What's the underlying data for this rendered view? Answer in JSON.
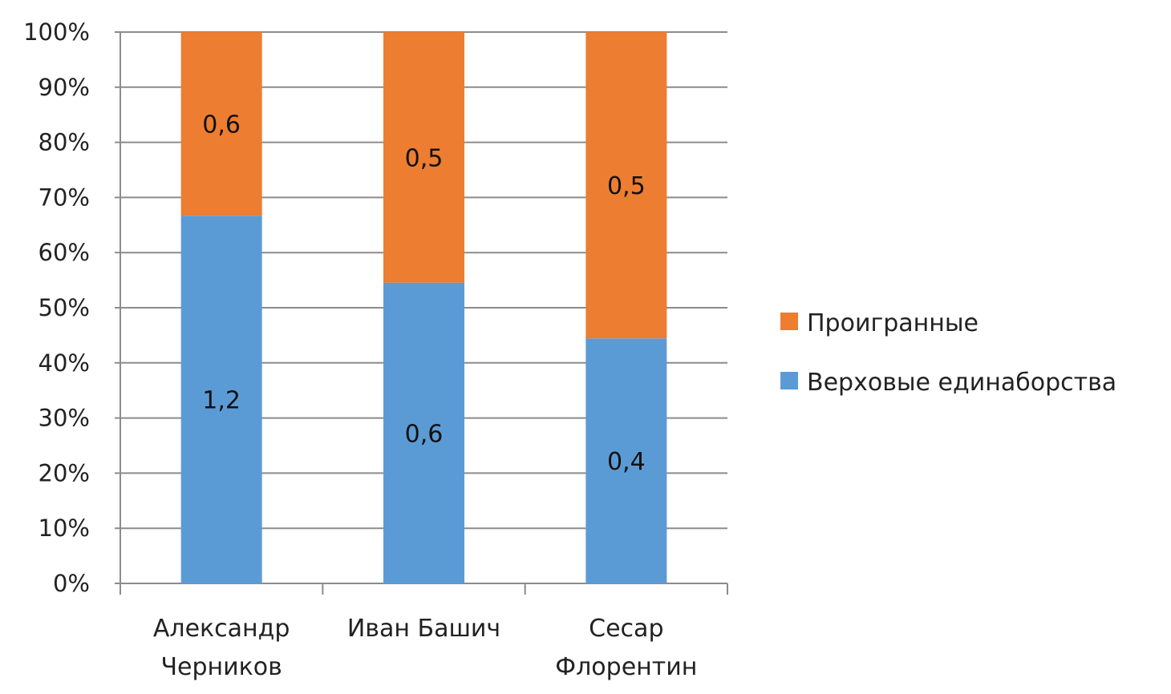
{
  "chart_data": {
    "type": "bar",
    "stacked": true,
    "percent_stacked": true,
    "categories": [
      [
        "Александр",
        "Черников"
      ],
      [
        "Иван Башич"
      ],
      [
        "Сесар",
        "Флорентин"
      ]
    ],
    "series": [
      {
        "name": "Верховые единаборства",
        "color": "#5B9BD5",
        "values": [
          1.2,
          0.6,
          0.4
        ],
        "labels": [
          "1,2",
          "0,6",
          "0,4"
        ]
      },
      {
        "name": "Проигранные",
        "color": "#ED7D31",
        "values": [
          0.6,
          0.5,
          0.5
        ],
        "labels": [
          "0,6",
          "0,5",
          "0,5"
        ]
      }
    ],
    "yticks": [
      "0%",
      "10%",
      "20%",
      "30%",
      "40%",
      "50%",
      "60%",
      "70%",
      "80%",
      "90%",
      "100%"
    ],
    "ylim": [
      0,
      100
    ],
    "grid": true,
    "legend": {
      "position": "right",
      "items": [
        {
          "name": "Проигранные",
          "color": "#ED7D31"
        },
        {
          "name": "Верховые единаборства",
          "color": "#5B9BD5"
        }
      ]
    }
  }
}
